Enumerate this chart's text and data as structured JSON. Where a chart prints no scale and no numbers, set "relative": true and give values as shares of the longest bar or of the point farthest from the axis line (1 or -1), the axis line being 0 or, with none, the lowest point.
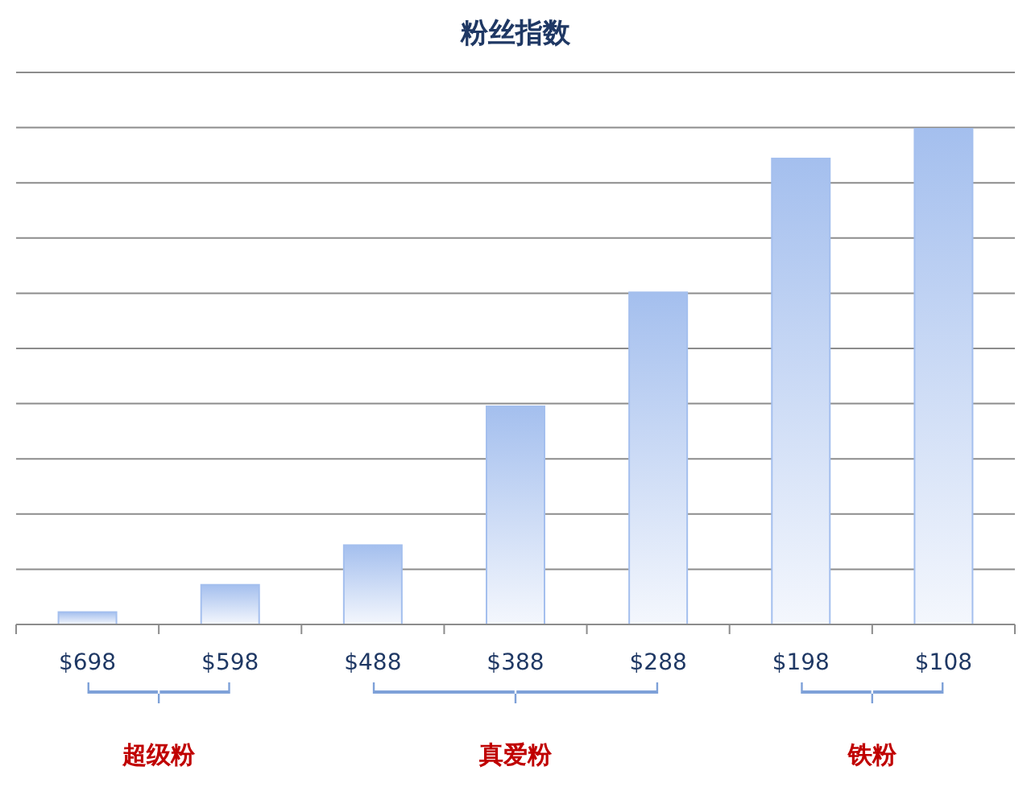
{
  "chart_data": {
    "type": "bar",
    "title": "粉丝指数",
    "relative": true,
    "categories": [
      "$698",
      "$598",
      "$488",
      "$388",
      "$288",
      "$198",
      "$108"
    ],
    "values": [
      0.025,
      0.08,
      0.16,
      0.44,
      0.67,
      0.94,
      1
    ],
    "color": "#a4bfee",
    "grid": "y",
    "annotations": [
      "超级粉",
      "真爱粉",
      "铁粉"
    ]
  }
}
